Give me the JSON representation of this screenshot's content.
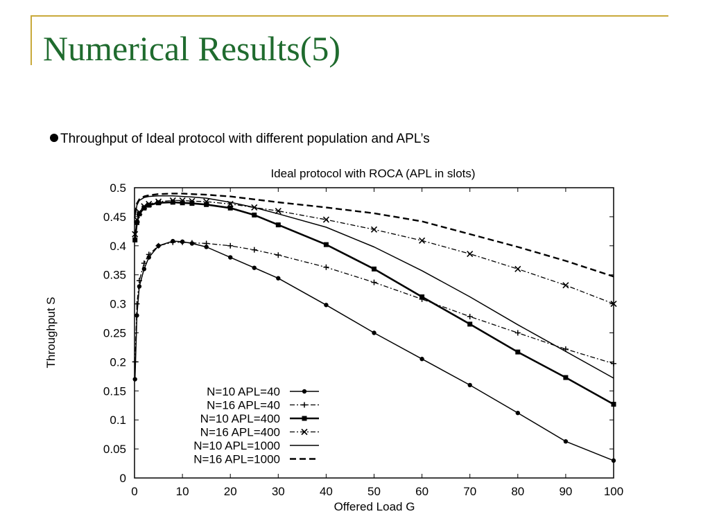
{
  "slide": {
    "title": "Numerical Results(5)",
    "bullet": "Throughput of Ideal protocol with different population and APL’s"
  },
  "colors": {
    "title": "#1f6b2e",
    "accent": "#c9a93a",
    "plot": "#000000"
  },
  "chart_data": {
    "type": "line",
    "title": "Ideal protocol with ROCA (APL in slots)",
    "xlabel": "Offered Load G",
    "ylabel": "Throughput S",
    "xlim": [
      0,
      100
    ],
    "ylim": [
      0,
      0.5
    ],
    "xticks": [
      0,
      10,
      20,
      30,
      40,
      50,
      60,
      70,
      80,
      90,
      100
    ],
    "yticks": [
      0,
      0.05,
      0.1,
      0.15,
      0.2,
      0.25,
      0.3,
      0.35,
      0.4,
      0.45,
      0.5
    ],
    "ytick_labels": [
      "0",
      "0.05",
      "0.1",
      "0.15",
      "0.2",
      "0.25",
      "0.3",
      "0.35",
      "0.4",
      "0.45",
      "0.5"
    ],
    "legend_position": "bottom-left",
    "grid": false,
    "series": [
      {
        "name": "N=10 APL=40",
        "marker": "dot",
        "dash": "solid",
        "x": [
          0.1,
          0.5,
          1,
          2,
          3,
          5,
          8,
          10,
          12,
          15,
          20,
          25,
          30,
          40,
          50,
          60,
          70,
          80,
          90,
          100
        ],
        "y": [
          0.17,
          0.28,
          0.33,
          0.36,
          0.38,
          0.4,
          0.408,
          0.407,
          0.404,
          0.398,
          0.38,
          0.362,
          0.344,
          0.298,
          0.25,
          0.205,
          0.16,
          0.112,
          0.063,
          0.03
        ]
      },
      {
        "name": "N=16 APL=40",
        "marker": "plus",
        "dash": "dashdot",
        "x": [
          0.1,
          0.5,
          1,
          2,
          3,
          5,
          8,
          10,
          12,
          15,
          20,
          25,
          30,
          40,
          50,
          60,
          70,
          80,
          90,
          100
        ],
        "y": [
          0.2,
          0.3,
          0.34,
          0.37,
          0.385,
          0.4,
          0.406,
          0.406,
          0.405,
          0.404,
          0.4,
          0.393,
          0.384,
          0.363,
          0.337,
          0.308,
          0.278,
          0.25,
          0.222,
          0.197
        ]
      },
      {
        "name": "N=10 APL=400",
        "marker": "square",
        "dash": "solid-bold",
        "x": [
          0.1,
          0.5,
          1,
          2,
          3,
          5,
          8,
          10,
          12,
          15,
          20,
          25,
          30,
          40,
          50,
          60,
          70,
          80,
          90,
          100
        ],
        "y": [
          0.41,
          0.44,
          0.455,
          0.465,
          0.47,
          0.474,
          0.475,
          0.474,
          0.473,
          0.471,
          0.465,
          0.453,
          0.436,
          0.402,
          0.36,
          0.312,
          0.265,
          0.217,
          0.173,
          0.127
        ]
      },
      {
        "name": "N=16 APL=400",
        "marker": "cross",
        "dash": "dashdot",
        "x": [
          0.1,
          0.5,
          1,
          2,
          3,
          5,
          8,
          10,
          12,
          15,
          20,
          25,
          30,
          40,
          50,
          60,
          70,
          80,
          90,
          100
        ],
        "y": [
          0.42,
          0.445,
          0.458,
          0.468,
          0.472,
          0.476,
          0.478,
          0.478,
          0.477,
          0.476,
          0.472,
          0.466,
          0.46,
          0.445,
          0.428,
          0.409,
          0.386,
          0.36,
          0.332,
          0.3
        ]
      },
      {
        "name": "N=10 APL=1000",
        "marker": "none",
        "dash": "solid",
        "x": [
          0.1,
          0.5,
          1,
          2,
          3,
          5,
          8,
          10,
          12,
          15,
          20,
          25,
          30,
          40,
          50,
          60,
          70,
          80,
          90,
          100
        ],
        "y": [
          0.45,
          0.47,
          0.478,
          0.483,
          0.485,
          0.486,
          0.486,
          0.485,
          0.484,
          0.482,
          0.475,
          0.466,
          0.455,
          0.432,
          0.398,
          0.357,
          0.312,
          0.264,
          0.218,
          0.172
        ]
      },
      {
        "name": "N=16 APL=1000",
        "marker": "none",
        "dash": "dashed-bold",
        "x": [
          0.1,
          0.5,
          1,
          2,
          3,
          5,
          8,
          10,
          12,
          15,
          20,
          25,
          30,
          40,
          50,
          60,
          70,
          80,
          90,
          100
        ],
        "y": [
          0.455,
          0.473,
          0.48,
          0.485,
          0.487,
          0.489,
          0.49,
          0.49,
          0.489,
          0.488,
          0.485,
          0.48,
          0.475,
          0.466,
          0.456,
          0.442,
          0.42,
          0.398,
          0.374,
          0.347
        ]
      }
    ]
  }
}
